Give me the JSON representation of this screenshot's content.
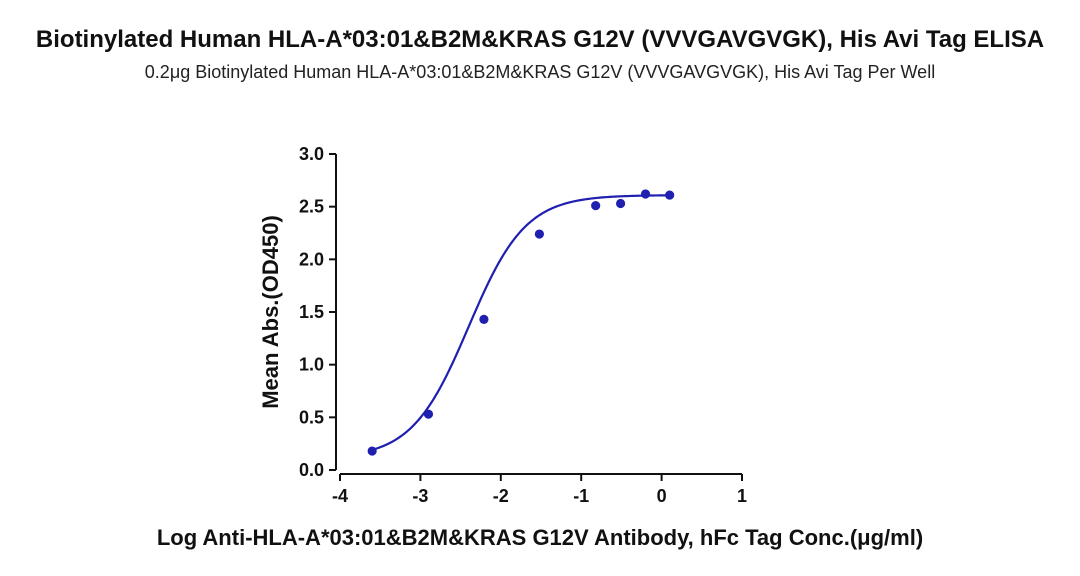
{
  "chart_data": {
    "type": "scatter",
    "title": "Biotinylated Human HLA-A*03:01&B2M&KRAS G12V (VVVGAVGVGK), His Avi Tag ELISA",
    "subtitle": "0.2μg Biotinylated Human HLA-A*03:01&B2M&KRAS G12V (VVVGAVGVGK), His Avi Tag Per Well",
    "xlabel": "Log Anti-HLA-A*03:01&B2M&KRAS G12V Antibody, hFc Tag Conc.(μg/ml)",
    "ylabel": "Mean Abs.(OD450)",
    "xlim": [
      -4,
      1
    ],
    "ylim": [
      0,
      3
    ],
    "x_ticks": [
      -4,
      -3,
      -2,
      -1,
      0,
      1
    ],
    "x_tick_labels": [
      "-4",
      "-3",
      "-2",
      "-1",
      "0",
      "1"
    ],
    "y_ticks": [
      0,
      0.5,
      1,
      1.5,
      2,
      2.5,
      3
    ],
    "y_tick_labels": [
      "0.0",
      "0.5",
      "1.0",
      "1.5",
      "2.0",
      "2.5",
      "3.0"
    ],
    "grid": false,
    "series": [
      {
        "x": [
          -3.6,
          -2.9,
          -2.21,
          -1.52,
          -0.82,
          -0.51,
          -0.2,
          0.1
        ],
        "y": [
          0.18,
          0.53,
          1.43,
          2.24,
          2.51,
          2.53,
          2.62,
          2.61
        ],
        "fit": "four-parameter logistic",
        "fit_params": {
          "bottom": 0.11,
          "top": 2.61,
          "logEC50": -2.4,
          "hill": 1.23
        }
      }
    ],
    "colors": {
      "series": "#1f1fb0",
      "axis": "#111111"
    }
  }
}
